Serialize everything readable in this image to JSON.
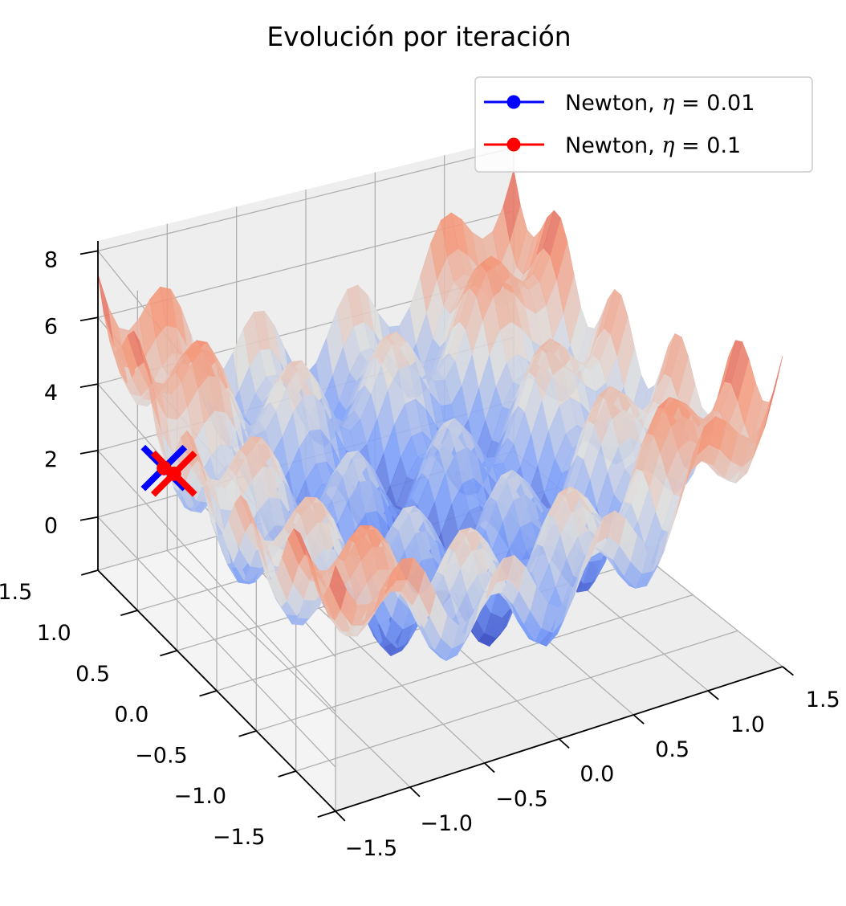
{
  "chart_data": {
    "type": "surface3d",
    "title": "Evolución por iteración",
    "x_axis": {
      "label": "",
      "ticks": [
        "−1.5",
        "−1.0",
        "−0.5",
        "0.0",
        "0.5",
        "1.0",
        "1.5"
      ],
      "range": [
        -1.5,
        1.5
      ]
    },
    "y_axis": {
      "label": "",
      "ticks": [
        "−1.5",
        "−1.0",
        "−0.5",
        "0.0",
        "0.5",
        "1.0",
        "1.5"
      ],
      "range": [
        -1.5,
        1.5
      ]
    },
    "z_axis": {
      "label": "",
      "ticks": [
        "0",
        "2",
        "4",
        "6",
        "8"
      ],
      "range": [
        -1.6,
        8.3
      ]
    },
    "colormap": "coolwarm",
    "grid": true,
    "legend_position": "top-right",
    "series": [
      {
        "name": "Newton, η = 0.01",
        "name_prefix": "Newton, ",
        "eta_value": "0.01",
        "color": "#0000ff",
        "points": [
          {
            "x": -1.3,
            "y": 1.02,
            "z": 2.5
          }
        ],
        "end_marker": "x"
      },
      {
        "name": "Newton, η = 0.1",
        "name_prefix": "Newton, ",
        "eta_value": "0.1",
        "color": "#ff0000",
        "points": [
          {
            "x": -1.3,
            "y": 1.02,
            "z": 2.5
          },
          {
            "x": -1.24,
            "y": 1.0,
            "z": 2.3
          }
        ],
        "end_marker": "x"
      }
    ]
  }
}
